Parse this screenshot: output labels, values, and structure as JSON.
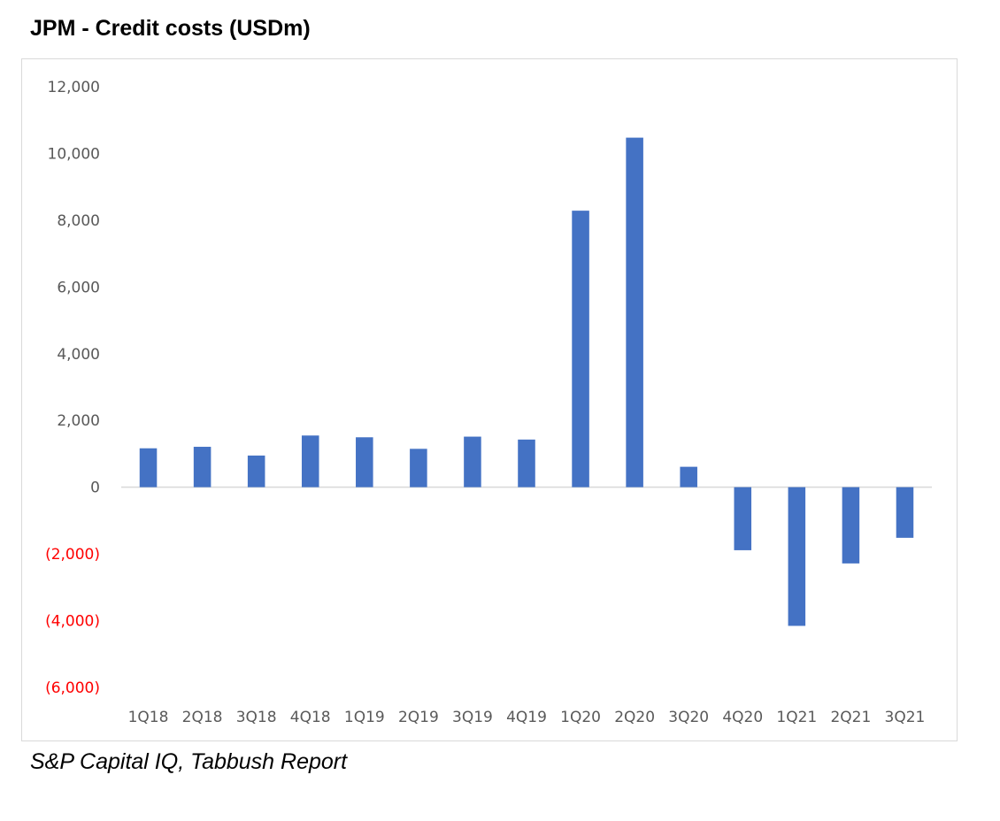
{
  "title": "JPM - Credit costs (USDm)",
  "source": "S&P Capital IQ, Tabbush Report",
  "colors": {
    "bar": "#4472c4",
    "axis_label": "#595959",
    "negative_label": "#ff0000",
    "zero_line": "#d9d9d9",
    "frame": "#d9d9d9"
  },
  "chart_data": {
    "type": "bar",
    "title": "JPM - Credit costs (USDm)",
    "xlabel": "",
    "ylabel": "",
    "categories": [
      "1Q18",
      "2Q18",
      "3Q18",
      "4Q18",
      "1Q19",
      "2Q19",
      "3Q19",
      "4Q19",
      "1Q20",
      "2Q20",
      "3Q20",
      "4Q20",
      "1Q21",
      "2Q21",
      "3Q21"
    ],
    "values": [
      1165,
      1210,
      948,
      1548,
      1495,
      1149,
      1514,
      1427,
      8285,
      10473,
      611,
      -1889,
      -4156,
      -2285,
      -1517
    ],
    "ylim": [
      -6000,
      12000
    ],
    "yticks": [
      12000,
      10000,
      8000,
      6000,
      4000,
      2000,
      0,
      -2000,
      -4000,
      -6000
    ],
    "ytick_labels": [
      "12,000",
      "10,000",
      "8,000",
      "6,000",
      "4,000",
      "2,000",
      "0",
      "(2,000)",
      "(4,000)",
      "(6,000)"
    ],
    "grid": false,
    "legend": "none"
  }
}
